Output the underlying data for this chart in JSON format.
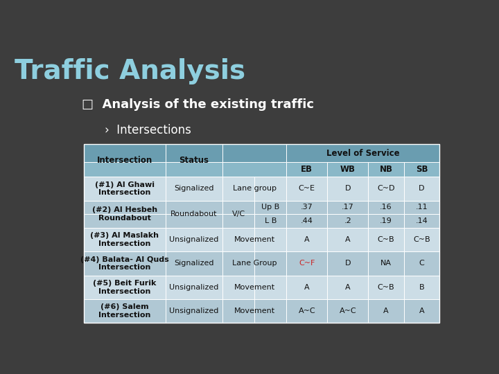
{
  "title": "Traffic Analysis",
  "bullet1": "□  Analysis of the existing traffic",
  "bullet2": "›  Intersections",
  "bg_color": "#3d3d3d",
  "title_color": "#8ecfdf",
  "bullet1_color": "#ffffff",
  "bullet2_color": "#ffffff",
  "header_top_color": "#6a9db0",
  "header_bot_color": "#8ab8c8",
  "row_a_color": "#b0c8d4",
  "row_b_color": "#ccdde6",
  "level_of_service_label": "Level of Service",
  "rows": [
    {
      "intersection": "(#1) Al Ghawi\nIntersection",
      "status": "Signalized",
      "col3": "Lane group",
      "eb": "C~E",
      "wb": "D",
      "nb": "C~D",
      "sb": "D",
      "eb_color": "#111111"
    },
    {
      "intersection": "(#2) Al Hesbeh\nRoundabout",
      "status": "Roundabout",
      "vc": "V/C",
      "col3_a": "Up B",
      "col3_b": "L B",
      "eb_a": ".37",
      "wb_a": ".17",
      "nb_a": ".16",
      "sb_a": ".11",
      "eb_b": ".44",
      "wb_b": ".2",
      "nb_b": ".19",
      "sb_b": ".14"
    },
    {
      "intersection": "(#3) Al Maslakh\nIntersection",
      "status": "Unsignalized",
      "col3": "Movement",
      "eb": "A",
      "wb": "A",
      "nb": "C~B",
      "sb": "C~B",
      "eb_color": "#111111"
    },
    {
      "intersection": "(#4) Balata- Al Quds\nIntersection",
      "status": "Signalized",
      "col3": "Lane Group",
      "eb": "C~F",
      "wb": "D",
      "nb": "NA",
      "sb": "C",
      "eb_color": "#cc2222"
    },
    {
      "intersection": "(#5) Beit Furik\nIntersection",
      "status": "Unsignalized",
      "col3": "Movement",
      "eb": "A",
      "wb": "A",
      "nb": "C~B",
      "sb": "B",
      "eb_color": "#111111"
    },
    {
      "intersection": "(#6) Salem\nIntersection",
      "status": "Unsignalized",
      "col3": "Movement",
      "eb": "A~C",
      "wb": "A~C",
      "nb": "A",
      "sb": "A",
      "eb_color": "#111111"
    }
  ]
}
